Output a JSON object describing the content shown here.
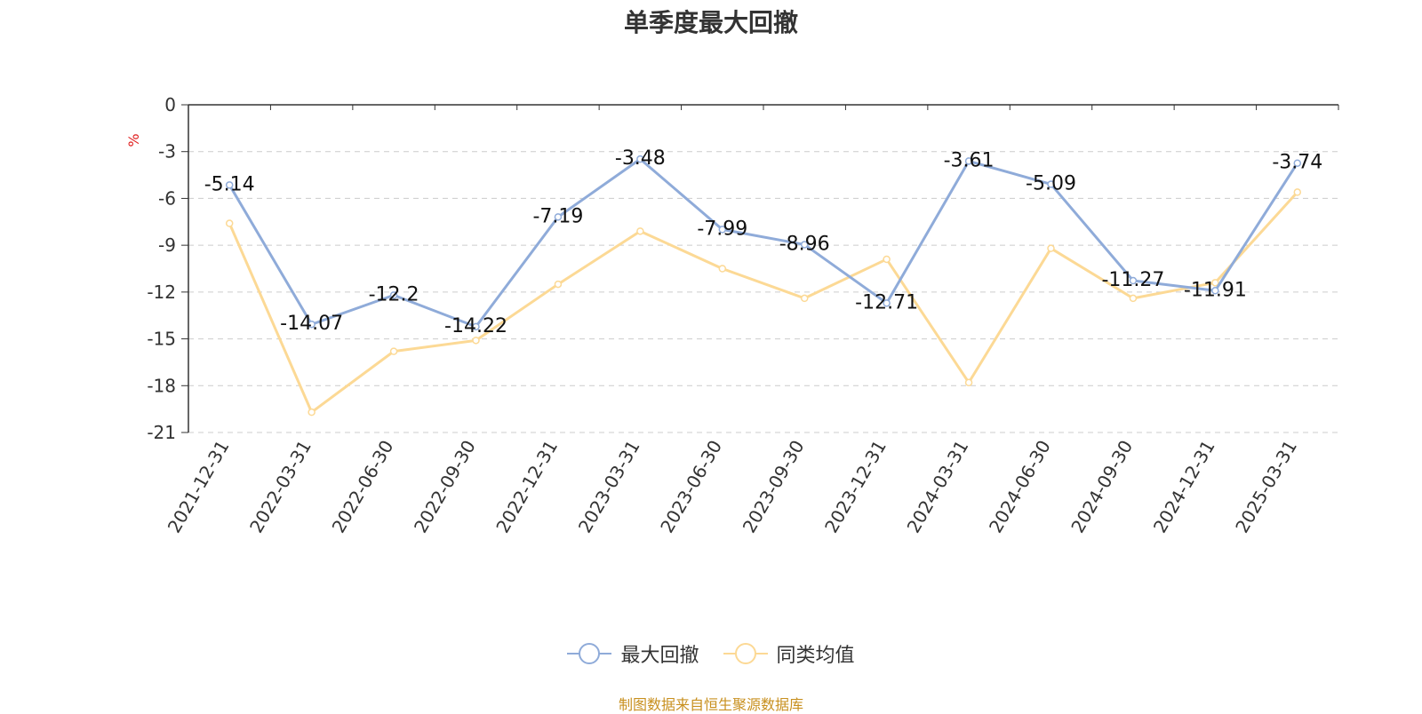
{
  "chart_data": {
    "type": "line",
    "title": "单季度最大回撤",
    "ylabel": "%",
    "ylim": [
      -21,
      0
    ],
    "yticks": [
      0,
      -3,
      -6,
      -9,
      -12,
      -15,
      -18,
      -21
    ],
    "grid": true,
    "legend_position": "bottom",
    "categories": [
      "2021-12-31",
      "2022-03-31",
      "2022-06-30",
      "2022-09-30",
      "2022-12-31",
      "2023-03-31",
      "2023-06-30",
      "2023-09-30",
      "2023-12-31",
      "2024-03-31",
      "2024-06-30",
      "2024-09-30",
      "2024-12-31",
      "2025-03-31"
    ],
    "series": [
      {
        "name": "最大回撤",
        "color": "#8fabd9",
        "show_labels": true,
        "values": [
          -5.14,
          -14.07,
          -12.2,
          -14.22,
          -7.19,
          -3.48,
          -7.99,
          -8.96,
          -12.71,
          -3.61,
          -5.09,
          -11.27,
          -11.91,
          -3.74
        ]
      },
      {
        "name": "同类均值",
        "color": "#fcd995",
        "show_labels": false,
        "values": [
          -7.6,
          -19.7,
          -15.8,
          -15.1,
          -11.5,
          -8.1,
          -10.5,
          -12.4,
          -9.9,
          -17.8,
          -9.2,
          -12.4,
          -11.4,
          -5.6
        ]
      }
    ]
  },
  "source_note": "制图数据来自恒生聚源数据库"
}
